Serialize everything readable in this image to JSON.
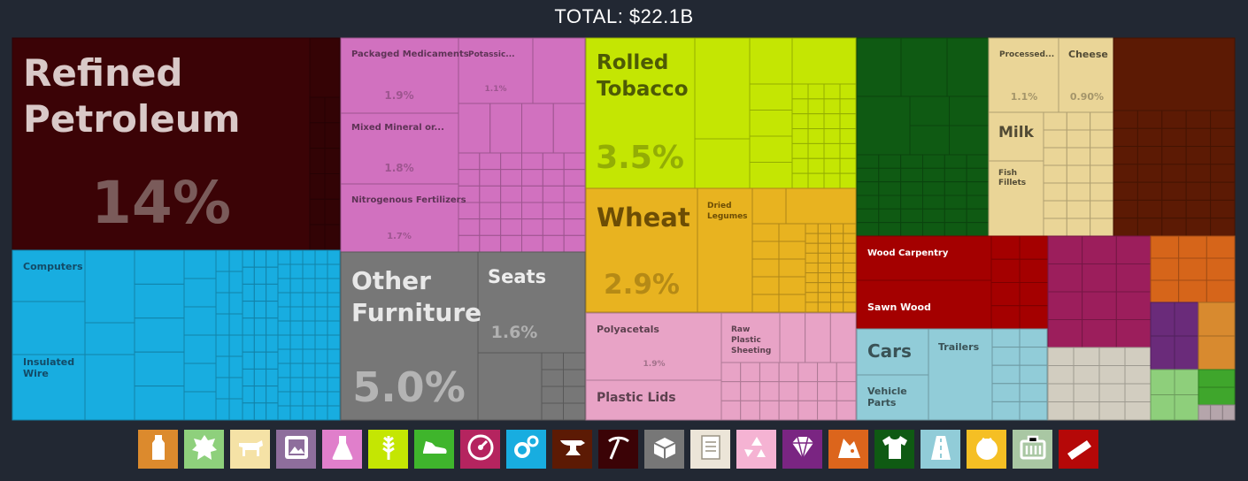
{
  "header": {
    "total_label": "TOTAL: $22.1B"
  },
  "chart_data": {
    "type": "treemap",
    "title": "TOTAL: $22.1B",
    "unit": "share of total exports (%)",
    "items": [
      {
        "name": "Refined Petroleum",
        "share_label": "14%",
        "share": 14,
        "color": "#3b0306"
      },
      {
        "name": "Computers",
        "share_label": "",
        "color": "#18ade0"
      },
      {
        "name": "Insulated Wire",
        "share_label": "",
        "color": "#18ade0"
      },
      {
        "name": "Packaged Medicaments",
        "share_label": "1.9%",
        "share": 1.9,
        "color": "#d171bf"
      },
      {
        "name": "Potassic...",
        "share_label": "1.1%",
        "share": 1.1,
        "color": "#d171bf"
      },
      {
        "name": "Mixed Mineral or...",
        "share_label": "1.8%",
        "share": 1.8,
        "color": "#d171bf"
      },
      {
        "name": "Nitrogenous Fertilizers",
        "share_label": "1.7%",
        "share": 1.7,
        "color": "#d171bf"
      },
      {
        "name": "Other Furniture",
        "share_label": "5.0%",
        "share": 5.0,
        "color": "#777777"
      },
      {
        "name": "Seats",
        "share_label": "1.6%",
        "share": 1.6,
        "color": "#777777"
      },
      {
        "name": "Rolled Tobacco",
        "share_label": "3.5%",
        "share": 3.5,
        "color": "#c4e603"
      },
      {
        "name": "Wheat",
        "share_label": "2.9%",
        "share": 2.9,
        "color": "#e8b320"
      },
      {
        "name": "Dried Legumes",
        "share_label": "",
        "color": "#e8b320"
      },
      {
        "name": "Polyacetals",
        "share_label": "1.9%",
        "share": 1.9,
        "color": "#e8a3c6"
      },
      {
        "name": "Raw Plastic Sheeting",
        "share_label": "",
        "color": "#e8a3c6"
      },
      {
        "name": "Plastic Lids",
        "share_label": "",
        "color": "#e8a3c6"
      },
      {
        "name": "Processed...",
        "share_label": "1.1%",
        "share": 1.1,
        "color": "#ead597"
      },
      {
        "name": "Cheese",
        "share_label": "0.90%",
        "share": 0.9,
        "color": "#ead597"
      },
      {
        "name": "Milk",
        "share_label": "",
        "color": "#ead597"
      },
      {
        "name": "Fish Fillets",
        "share_label": "",
        "color": "#ead597"
      },
      {
        "name": "Wood Carpentry",
        "share_label": "",
        "color": "#a40000"
      },
      {
        "name": "Sawn Wood",
        "share_label": "",
        "color": "#a40000"
      },
      {
        "name": "Cars",
        "share_label": "",
        "color": "#91ccd8"
      },
      {
        "name": "Trailers",
        "share_label": "",
        "color": "#91ccd8"
      },
      {
        "name": "Vehicle Parts",
        "share_label": "",
        "color": "#91ccd8"
      }
    ],
    "sector_colors": {
      "mineral": "#3b0306",
      "machines": "#18ade0",
      "chemicals": "#d171bf",
      "misc": "#777777",
      "foodstuffs": "#c4e603",
      "vegetables": "#e8b320",
      "plastics": "#e8a3c6",
      "animal": "#ead597",
      "wood": "#a40000",
      "transport": "#91ccd8",
      "textiles": "#0f5a13",
      "metals": "#5c1a04"
    }
  },
  "legend": [
    {
      "icon": "bottle-icon",
      "color": "#dc8a2d"
    },
    {
      "icon": "animal-hide-icon",
      "color": "#8ed07c"
    },
    {
      "icon": "cow-icon",
      "color": "#f5e2a6"
    },
    {
      "icon": "picture-frame-icon",
      "color": "#8e6e9c"
    },
    {
      "icon": "flask-icon",
      "color": "#e07fcb"
    },
    {
      "icon": "wheat-icon",
      "color": "#c4e603"
    },
    {
      "icon": "shoe-icon",
      "color": "#3fb52c"
    },
    {
      "icon": "gauge-icon",
      "color": "#b5245f"
    },
    {
      "icon": "gears-icon",
      "color": "#18ade0"
    },
    {
      "icon": "anvil-icon",
      "color": "#5c1a04"
    },
    {
      "icon": "pickaxe-icon",
      "color": "#3b0306"
    },
    {
      "icon": "boxes-icon",
      "color": "#777777"
    },
    {
      "icon": "scroll-icon",
      "color": "#ece5d8"
    },
    {
      "icon": "recycle-icon",
      "color": "#f5b3d3"
    },
    {
      "icon": "diamond-icon",
      "color": "#7a2582"
    },
    {
      "icon": "stone-icon",
      "color": "#dc651c"
    },
    {
      "icon": "shirt-icon",
      "color": "#0f5a13"
    },
    {
      "icon": "road-icon",
      "color": "#91ccd8"
    },
    {
      "icon": "tomato-icon",
      "color": "#f5bf24"
    },
    {
      "icon": "tool-case-icon",
      "color": "#a9c7a3"
    },
    {
      "icon": "wood-plank-icon",
      "color": "#b50808"
    }
  ]
}
